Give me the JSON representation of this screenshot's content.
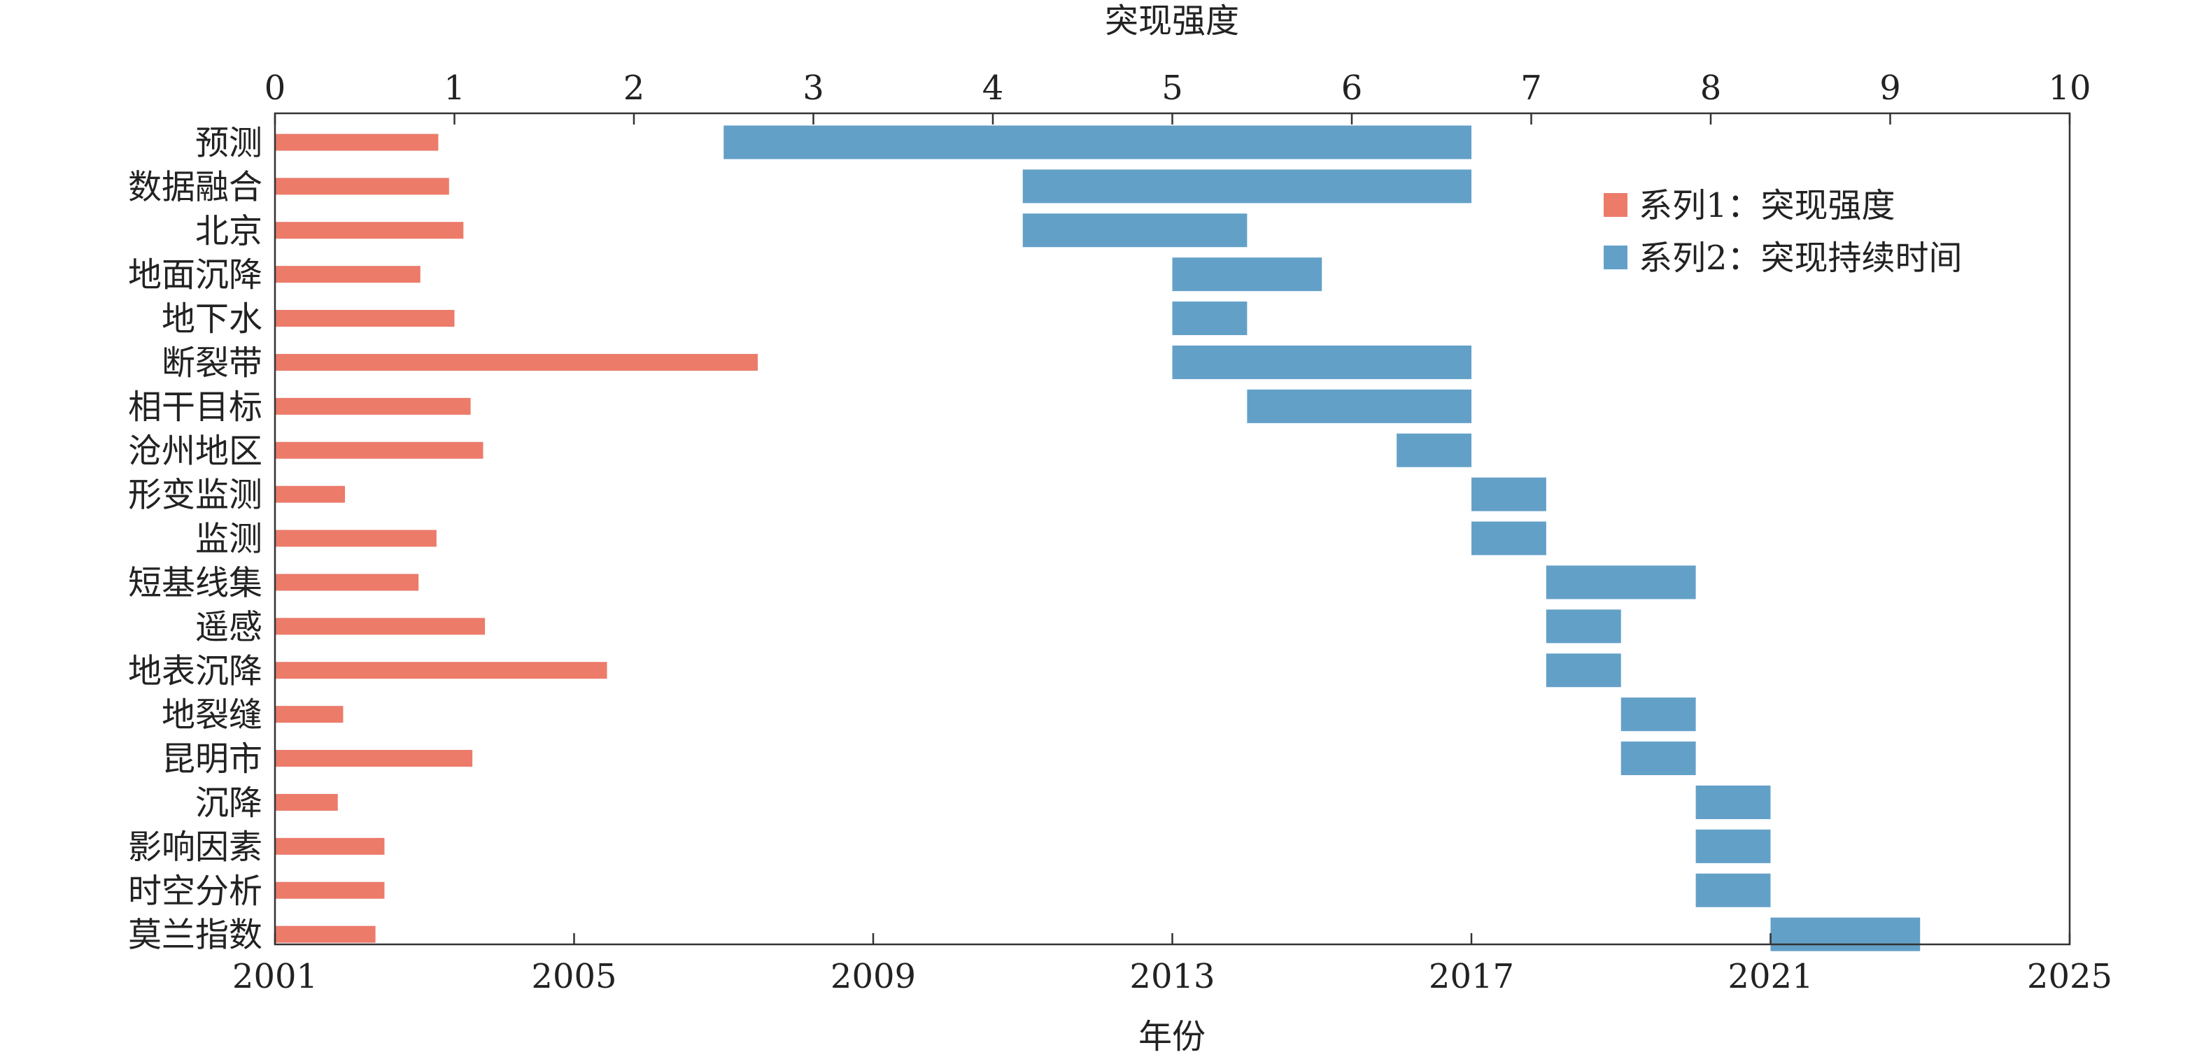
{
  "chart_data": {
    "type": "bar",
    "subtype": "burst-detection-gantt",
    "top_axis": {
      "label": "突现强度",
      "range": [
        0,
        10
      ],
      "ticks": [
        "0",
        "1",
        "2",
        "3",
        "4",
        "5",
        "6",
        "7",
        "8",
        "9",
        "10"
      ]
    },
    "bottom_axis": {
      "label": "年份",
      "range": [
        2001,
        2025
      ],
      "ticks": [
        "2001",
        "2005",
        "2009",
        "2013",
        "2017",
        "2021",
        "2025"
      ]
    },
    "legend": {
      "position": "top-right",
      "items": [
        {
          "label": "系列1：突现强度",
          "color": "#ec7b6a"
        },
        {
          "label": "系列2：突现持续时间",
          "color": "#63a0c8"
        }
      ]
    },
    "categories": [
      "预测",
      "数据融合",
      "北京",
      "地面沉降",
      "地下水",
      "断裂带",
      "相干目标",
      "沧州地区",
      "形变监测",
      "监测",
      "短基线集",
      "遥感",
      "地表沉降",
      "地裂缝",
      "昆明市",
      "沉降",
      "影响因素",
      "时空分析",
      "莫兰指数"
    ],
    "series": [
      {
        "name": "系列1：突现强度",
        "type": "bar",
        "axis": "top",
        "color": "#ec7b6a",
        "values": [
          0.91,
          0.97,
          1.05,
          0.81,
          1.0,
          2.69,
          1.09,
          1.16,
          0.39,
          0.9,
          0.8,
          1.17,
          1.85,
          0.38,
          1.1,
          0.35,
          0.61,
          0.61,
          0.56
        ]
      },
      {
        "name": "系列2：突现持续时间",
        "type": "range",
        "axis": "bottom",
        "color": "#63a0c8",
        "ranges": [
          [
            2007,
            2017
          ],
          [
            2011,
            2017
          ],
          [
            2011,
            2014
          ],
          [
            2013,
            2015
          ],
          [
            2013,
            2014
          ],
          [
            2013,
            2017
          ],
          [
            2014,
            2017
          ],
          [
            2016,
            2017
          ],
          [
            2017,
            2018
          ],
          [
            2017,
            2018
          ],
          [
            2018,
            2020
          ],
          [
            2018,
            2019
          ],
          [
            2018,
            2019
          ],
          [
            2019,
            2020
          ],
          [
            2019,
            2020
          ],
          [
            2020,
            2021
          ],
          [
            2020,
            2021
          ],
          [
            2020,
            2021
          ],
          [
            2021,
            2023
          ]
        ]
      }
    ]
  }
}
